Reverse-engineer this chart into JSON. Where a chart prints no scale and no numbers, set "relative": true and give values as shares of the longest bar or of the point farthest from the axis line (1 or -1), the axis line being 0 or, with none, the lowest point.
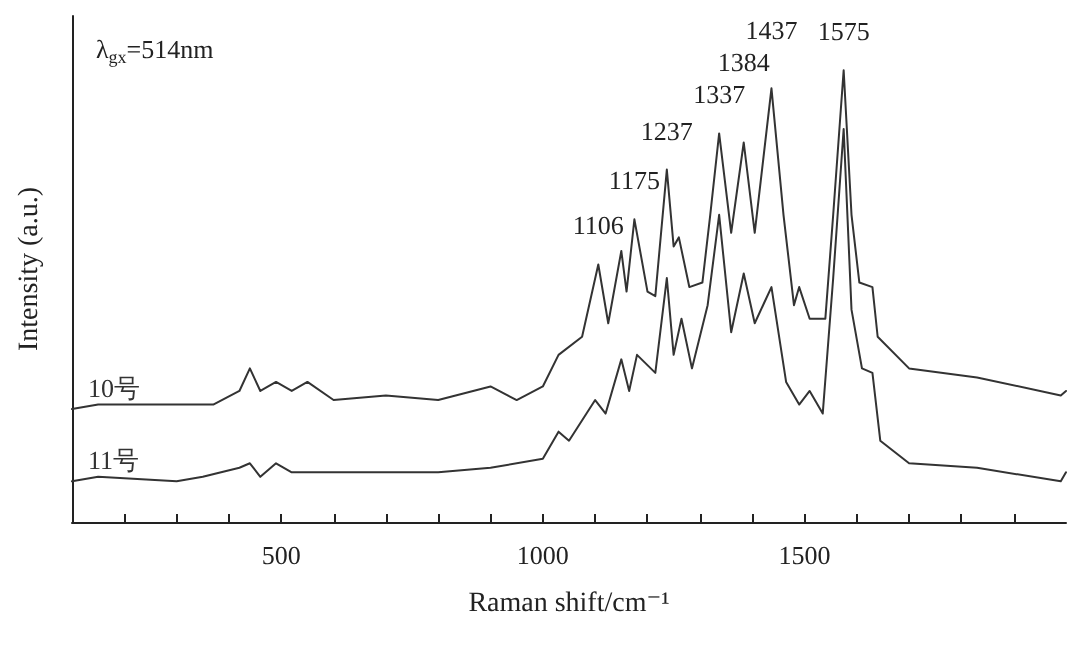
{
  "chart_data": {
    "type": "line",
    "relative": true,
    "xlabel": "Raman shift/cm⁻¹",
    "ylabel": "Intensity (a.u.)",
    "xlim": [
      100,
      2000
    ],
    "xticks": [
      {
        "value": 200,
        "label": null
      },
      {
        "value": 300,
        "label": null
      },
      {
        "value": 400,
        "label": null
      },
      500,
      {
        "value": 600,
        "label": null
      },
      {
        "value": 700,
        "label": null
      },
      {
        "value": 800,
        "label": null
      },
      {
        "value": 900,
        "label": null
      },
      1000,
      {
        "value": 1100,
        "label": null
      },
      {
        "value": 1200,
        "label": null
      },
      {
        "value": 1300,
        "label": null
      },
      {
        "value": 1400,
        "label": null
      },
      1500,
      {
        "value": 1600,
        "label": null
      },
      {
        "value": 1700,
        "label": null
      },
      {
        "value": 1800,
        "label": null
      },
      {
        "value": 1900,
        "label": null
      }
    ],
    "grid": false,
    "legend": false,
    "marker": "none",
    "line_style": "solid",
    "series": [
      {
        "name": "10号",
        "color": "#333333",
        "x": [
          100,
          150,
          300,
          370,
          420,
          440,
          460,
          490,
          520,
          550,
          600,
          700,
          800,
          900,
          950,
          1000,
          1030,
          1075,
          1106,
          1125,
          1150,
          1160,
          1175,
          1200,
          1215,
          1237,
          1250,
          1260,
          1280,
          1305,
          1320,
          1337,
          1360,
          1384,
          1405,
          1437,
          1460,
          1480,
          1490,
          1510,
          1540,
          1555,
          1575,
          1590,
          1605,
          1630,
          1640,
          1700,
          1830,
          1990,
          2000
        ],
        "values": [
          0.25,
          0.26,
          0.26,
          0.26,
          0.29,
          0.34,
          0.29,
          0.31,
          0.29,
          0.31,
          0.27,
          0.28,
          0.27,
          0.3,
          0.27,
          0.3,
          0.37,
          0.41,
          0.57,
          0.44,
          0.6,
          0.51,
          0.67,
          0.51,
          0.5,
          0.78,
          0.61,
          0.63,
          0.52,
          0.53,
          0.68,
          0.86,
          0.64,
          0.84,
          0.64,
          0.96,
          0.68,
          0.48,
          0.52,
          0.45,
          0.45,
          0.68,
          1,
          0.68,
          0.53,
          0.52,
          0.41,
          0.34,
          0.32,
          0.28,
          0.29
        ]
      },
      {
        "name": "11号",
        "color": "#333333",
        "x": [
          100,
          150,
          300,
          350,
          420,
          440,
          460,
          490,
          520,
          600,
          800,
          900,
          1000,
          1030,
          1050,
          1100,
          1120,
          1150,
          1165,
          1180,
          1215,
          1237,
          1250,
          1265,
          1285,
          1315,
          1337,
          1360,
          1384,
          1405,
          1437,
          1465,
          1490,
          1510,
          1535,
          1555,
          1575,
          1590,
          1610,
          1630,
          1645,
          1700,
          1830,
          1990,
          2000
        ],
        "values": [
          0.09,
          0.1,
          0.09,
          0.1,
          0.12,
          0.13,
          0.1,
          0.13,
          0.11,
          0.11,
          0.11,
          0.12,
          0.14,
          0.2,
          0.18,
          0.27,
          0.24,
          0.36,
          0.29,
          0.37,
          0.33,
          0.54,
          0.37,
          0.45,
          0.34,
          0.48,
          0.68,
          0.42,
          0.55,
          0.44,
          0.52,
          0.31,
          0.26,
          0.29,
          0.24,
          0.54,
          0.87,
          0.47,
          0.34,
          0.33,
          0.18,
          0.13,
          0.12,
          0.09,
          0.11
        ]
      }
    ],
    "annotations": [
      "λ$_{gx}$=514nm",
      {
        "text": "1106",
        "x": 1106,
        "y": 0.57
      },
      {
        "text": "1175",
        "x": 1175,
        "y": 0.67
      },
      {
        "text": "1237",
        "x": 1237,
        "y": 0.78
      },
      {
        "text": "1337",
        "x": 1337,
        "y": 0.86
      },
      {
        "text": "1384",
        "x": 1384,
        "y": 0.84
      },
      {
        "text": "1437",
        "x": 1437,
        "y": 0.96
      },
      {
        "text": "1575",
        "x": 1575,
        "y": 1
      }
    ]
  }
}
